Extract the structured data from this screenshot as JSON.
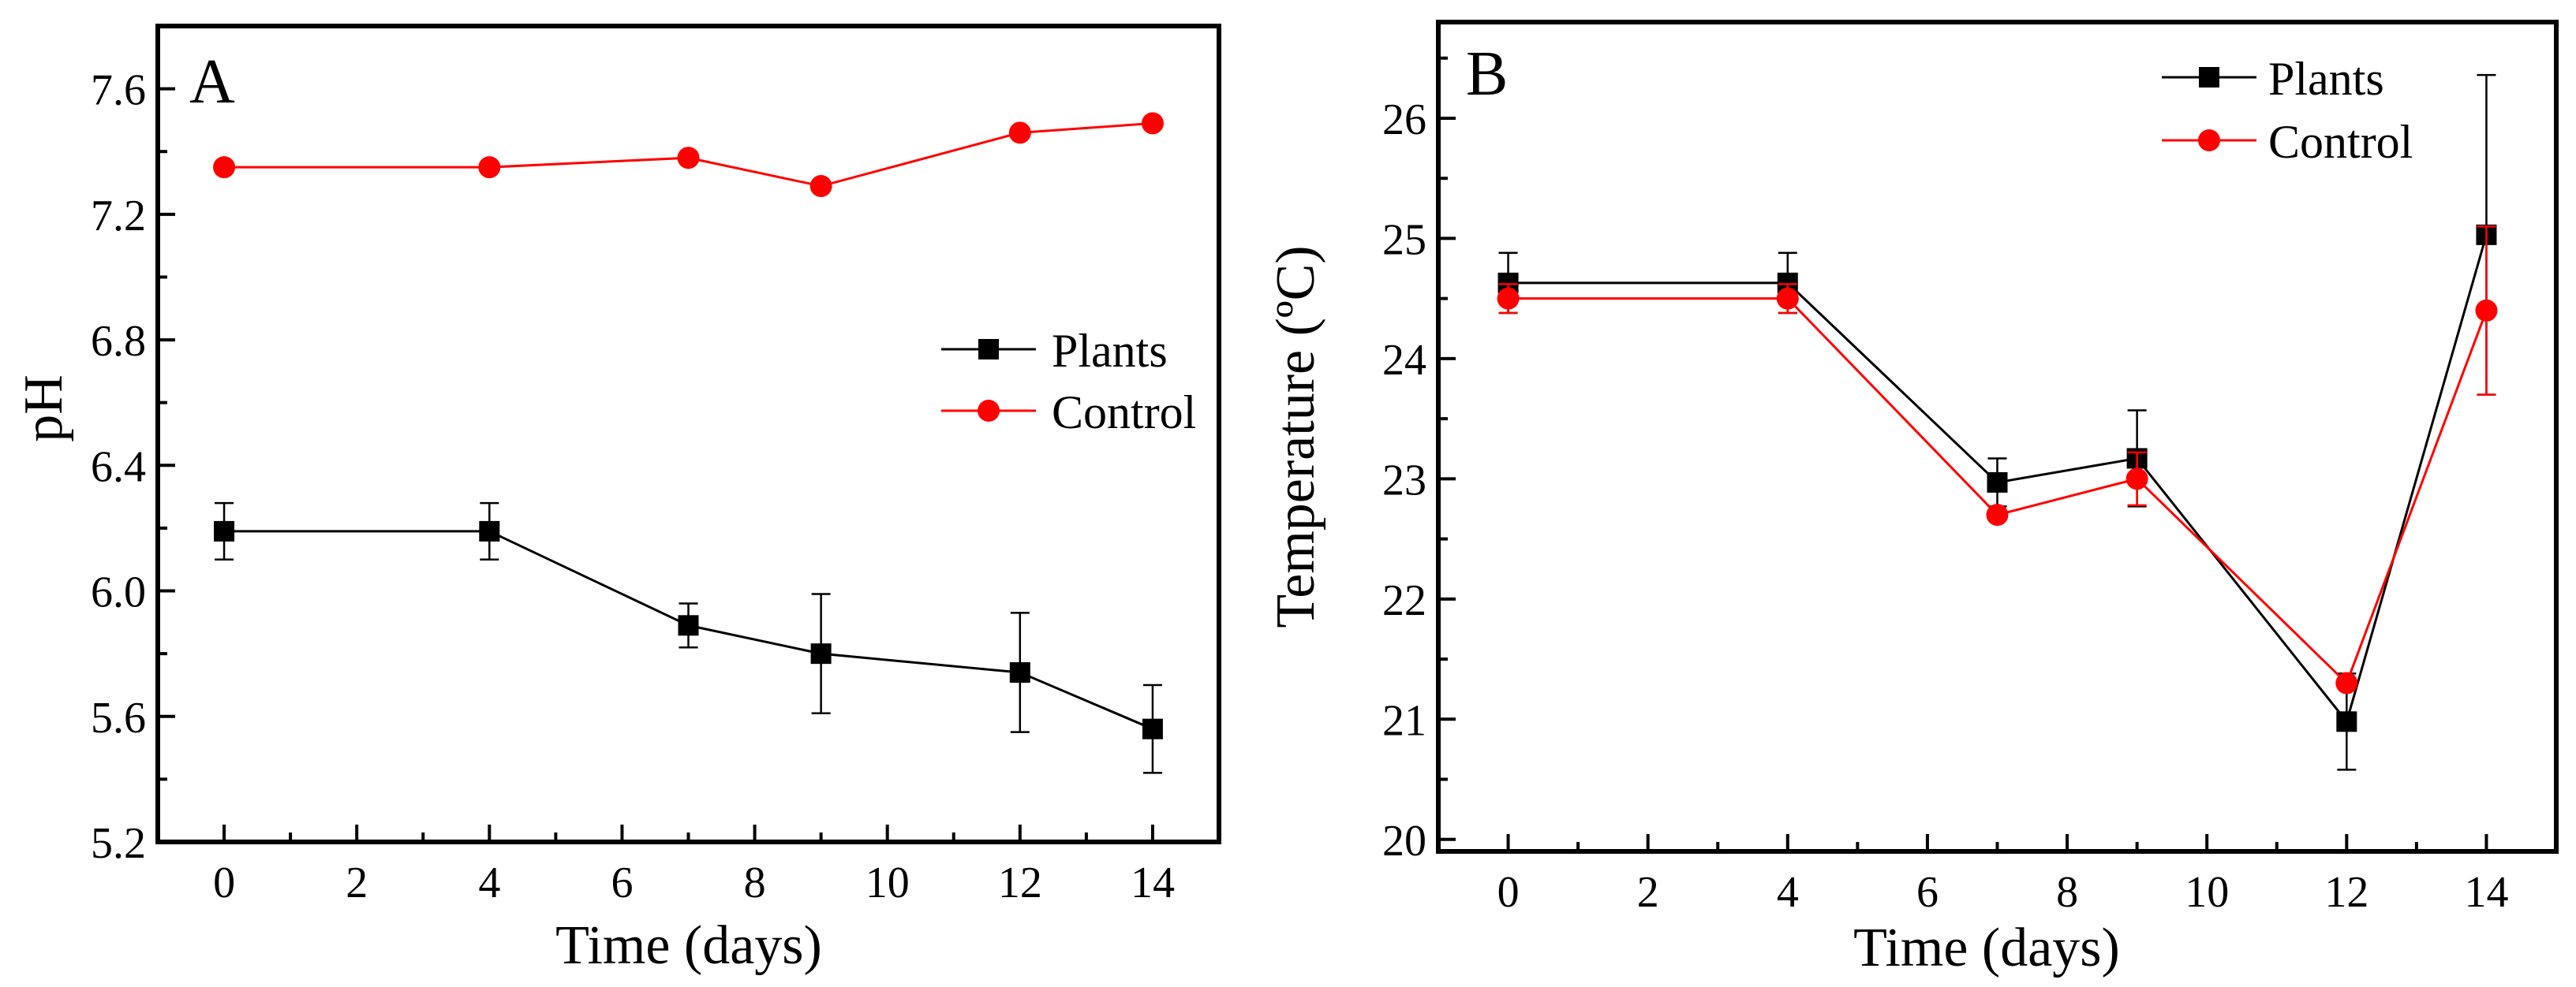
{
  "colors": {
    "plants": "#000000",
    "control": "#ff0000",
    "axis": "#000000",
    "background": "#ffffff"
  },
  "chart_data": [
    {
      "type": "line",
      "panel_label": "A",
      "xlabel": "Time (days)",
      "ylabel": "pH",
      "xlim": [
        -1,
        15
      ],
      "ylim": [
        5.2,
        7.8
      ],
      "xticks": [
        0,
        2,
        4,
        6,
        8,
        10,
        12,
        14
      ],
      "yticks": [
        5.2,
        5.6,
        6.0,
        6.4,
        6.8,
        7.2,
        7.6
      ],
      "ytick_labels": [
        "5.2",
        "5.6",
        "6.0",
        "6.4",
        "6.8",
        "7.2",
        "7.6"
      ],
      "legend_position": "center-right",
      "series": [
        {
          "name": "Plants",
          "marker": "square",
          "x": [
            0,
            4,
            7,
            9,
            12,
            14
          ],
          "values": [
            6.19,
            6.19,
            5.89,
            5.8,
            5.74,
            5.56
          ],
          "error": [
            0.09,
            0.09,
            0.07,
            0.19,
            0.19,
            0.14
          ]
        },
        {
          "name": "Control",
          "marker": "circle",
          "x": [
            0,
            4,
            7,
            9,
            12,
            14
          ],
          "values": [
            7.35,
            7.35,
            7.38,
            7.29,
            7.46,
            7.49
          ],
          "error": [
            0,
            0,
            0,
            0,
            0,
            0
          ]
        }
      ]
    },
    {
      "type": "line",
      "panel_label": "B",
      "xlabel": "Time (days)",
      "ylabel": "Temperature (ºC)",
      "xlim": [
        -1,
        15
      ],
      "ylim": [
        19.9,
        26.8
      ],
      "xticks": [
        0,
        2,
        4,
        6,
        8,
        10,
        12,
        14
      ],
      "yticks": [
        20,
        21,
        22,
        23,
        24,
        25,
        26
      ],
      "ytick_labels": [
        "20",
        "21",
        "22",
        "23",
        "24",
        "25",
        "26"
      ],
      "legend_position": "top-right",
      "series": [
        {
          "name": "Plants",
          "marker": "square",
          "x": [
            0,
            4,
            7,
            9,
            12,
            14
          ],
          "values": [
            24.63,
            24.63,
            22.97,
            23.17,
            20.98,
            25.03
          ],
          "error": [
            0.25,
            0.25,
            0.2,
            0.4,
            0.4,
            1.33
          ]
        },
        {
          "name": "Control",
          "marker": "circle",
          "x": [
            0,
            4,
            7,
            9,
            12,
            14
          ],
          "values": [
            24.5,
            24.5,
            22.7,
            23.0,
            21.3,
            24.4
          ],
          "error": [
            0.12,
            0.12,
            0,
            0.22,
            0,
            0.7
          ]
        }
      ]
    }
  ]
}
